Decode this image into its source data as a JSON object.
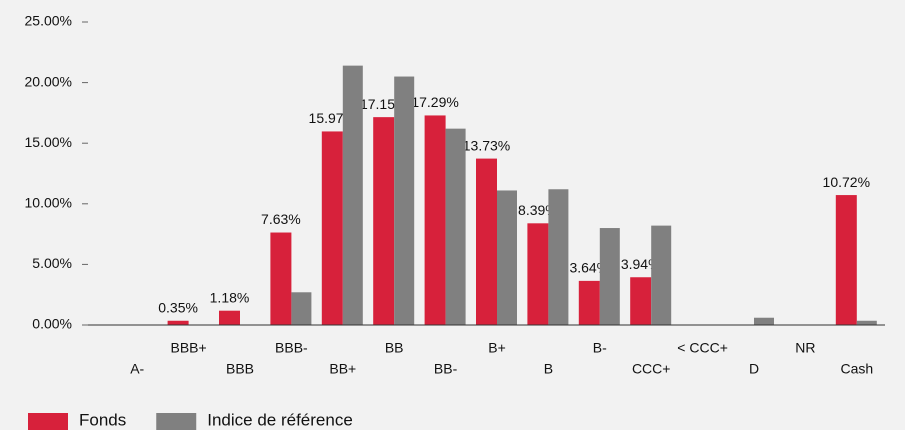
{
  "chart_data": {
    "type": "bar",
    "categories": [
      "A-",
      "BBB+",
      "BBB",
      "BBB-",
      "BB+",
      "BB",
      "BB-",
      "B+",
      "B",
      "B-",
      "CCC+",
      "< CCC+",
      "D",
      "NR",
      "Cash"
    ],
    "series": [
      {
        "name": "Fonds",
        "color": "#d7213b",
        "values": [
          0,
          0.35,
          1.18,
          7.63,
          15.97,
          17.15,
          17.29,
          13.73,
          8.39,
          3.64,
          3.94,
          0,
          0,
          0,
          10.72
        ],
        "value_labels": [
          null,
          "0.35%",
          "1.18%",
          "7.63%",
          "15.97%",
          "17.15%",
          "17.29%",
          "13.73%",
          "8.39%",
          "3.64%",
          "3.94%",
          null,
          null,
          null,
          "10.72%"
        ]
      },
      {
        "name": "Indice de référence",
        "color": "#808080",
        "values": [
          0,
          0,
          0,
          2.7,
          21.4,
          20.5,
          16.2,
          11.1,
          11.2,
          8.0,
          8.2,
          0,
          0.6,
          0,
          0.35
        ]
      }
    ],
    "ylim": [
      0,
      25
    ],
    "yticks": [
      {
        "value": 0,
        "label": "0.00%"
      },
      {
        "value": 5,
        "label": "5.00%"
      },
      {
        "value": 10,
        "label": "10.00%"
      },
      {
        "value": 15,
        "label": "15.00%"
      },
      {
        "value": 20,
        "label": "20.00%"
      },
      {
        "value": 25,
        "label": "25.00%"
      }
    ],
    "grid": false
  }
}
